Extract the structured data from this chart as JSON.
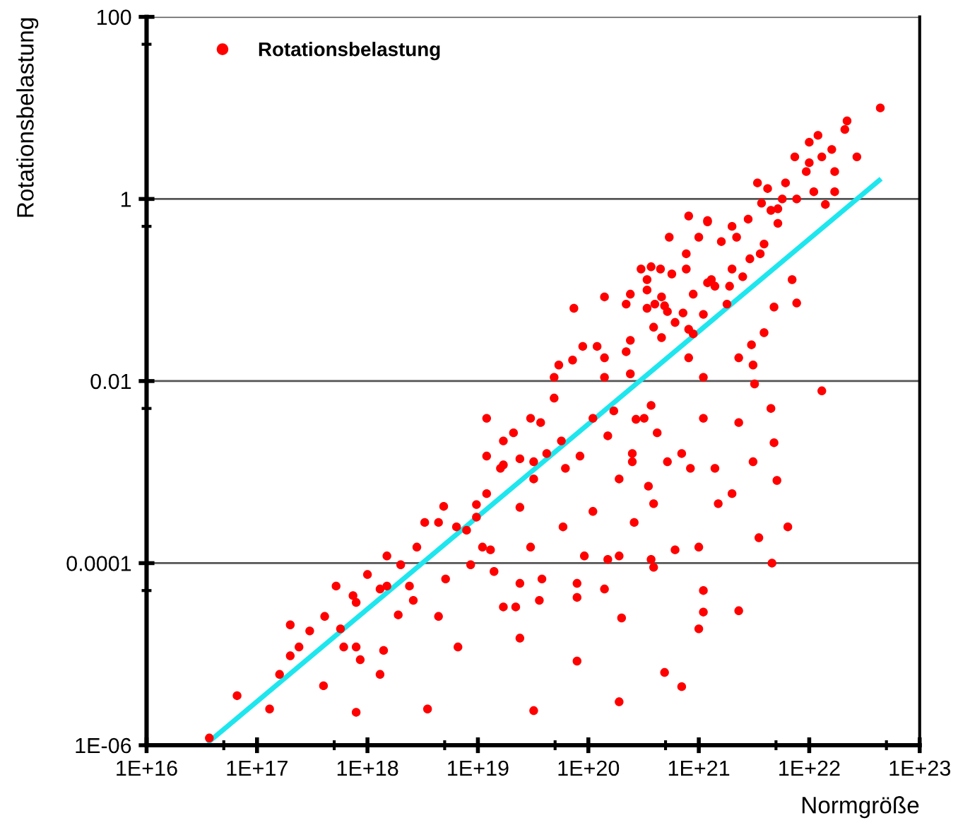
{
  "chart_data": {
    "type": "scatter",
    "xlabel": "Normgröße",
    "ylabel": "Rotationsbelastung",
    "log": "xy",
    "grid": "y",
    "legend": "top left",
    "xlim": [
      1e+16,
      1e+23
    ],
    "ylim": [
      1e-06,
      100
    ],
    "xticks": [
      {
        "value": 1e+16,
        "label": "1E+16"
      },
      {
        "value": 5e+16,
        "label": null
      },
      {
        "value": 1e+17,
        "label": "1E+17"
      },
      {
        "value": 5e+17,
        "label": null
      },
      {
        "value": 1e+18,
        "label": "1E+18"
      },
      {
        "value": 5e+18,
        "label": null
      },
      {
        "value": 1e+19,
        "label": "1E+19"
      },
      {
        "value": 5e+19,
        "label": null
      },
      {
        "value": 1e+20,
        "label": "1E+20"
      },
      {
        "value": 5e+20,
        "label": null
      },
      {
        "value": 1e+21,
        "label": "1E+21"
      },
      {
        "value": 5e+21,
        "label": null
      },
      {
        "value": 1e+22,
        "label": "1E+22"
      },
      {
        "value": 5e+22,
        "label": null
      },
      {
        "value": 1e+23,
        "label": "1E+23"
      }
    ],
    "yticks": [
      {
        "value": 1e-06,
        "label": "1E-06"
      },
      {
        "value": 5e-05,
        "label": null
      },
      0.0001,
      {
        "value": 0.005,
        "label": null
      },
      0.01,
      {
        "value": 0.5,
        "label": null
      },
      1,
      {
        "value": 50,
        "label": null
      },
      100
    ],
    "series": [
      {
        "name": "Rotationsbelastung",
        "marker": "circle",
        "color": "#ff0000",
        "x": [
          3.7e+16,
          6.6e+16,
          1.3e+17,
          1.6e+17,
          2e+17,
          2.4e+17,
          3e+17,
          4.1e+17,
          4e+17,
          5.7e+17,
          5.2e+17,
          7.9e+17,
          7.9e+17,
          1e+18,
          7.9e+17,
          1.3e+18,
          1.4e+18,
          1.3e+18,
          2e+18,
          2.4e+18,
          2.8e+18,
          3.5e+18,
          4.4e+18,
          5.1e+18,
          4.9e+18,
          6.6e+18,
          7.9e+18,
          9.7e+18,
          1.2e+19,
          1.3e+19,
          1.7e+19,
          1.7e+19,
          2.4e+19,
          2.4e+19,
          2.2e+19,
          3.2e+19,
          3.2e+19,
          3.6e+19,
          1.2e+19,
          1.7e+19,
          3e+19,
          4.9e+19,
          5.4e+19,
          6.2e+19,
          5.9e+19,
          7.9e+19,
          7.9e+19,
          7.4e+19,
          8.9e+19,
          1.1e+20,
          1.4e+20,
          1.5e+20,
          1.4e+20,
          1.9e+20,
          2e+20,
          1.5e+20,
          1.9e+20,
          1.4e+20,
          2.4e+20,
          2.5e+20,
          2.6e+20,
          3.4e+20,
          3.2e+20,
          3.7e+20,
          3.9e+20,
          3.9e+20,
          3e+20,
          4.5e+20,
          4.2e+20,
          5.2e+20,
          5.4e+20,
          6.1e+20,
          7e+20,
          4.9e+20,
          7.7e+20,
          8.1e+20,
          7e+20,
          8.1e+20,
          8.4e+20,
          1e+21,
          1.1e+21,
          1e+21,
          1.1e+21,
          1.1e+21,
          1.2e+21,
          1.3e+21,
          1.5e+21,
          1.4e+21,
          1.6e+21,
          2e+21,
          2.3e+21,
          2.3e+21,
          4.4e+22,
          2.2e+22,
          2.1e+22,
          2.7e+22,
          1.2e+22,
          1e+22,
          1.6e+22,
          1.3e+22,
          7.4e+21,
          1e+22,
          9.4e+21,
          1.7e+22,
          1.1e+22,
          1.7e+22,
          1.4e+22,
          6.1e+21,
          3.4e+21,
          4.2e+21,
          5.7e+21,
          3.7e+21,
          4.5e+21,
          2.8e+21,
          5.2e+21,
          2e+21,
          1.2e+21,
          1e+21,
          3.9e+21,
          3.6e+21,
          2.2e+21,
          2.9e+21,
          2e+21,
          7.7e+20,
          5.7e+20,
          3.7e+20,
          1.2e+21,
          1.9e+21,
          2.5e+21,
          3.4e+20,
          4.6e+20,
          2.2e+20,
          4e+20,
          8.9e+20,
          1.4e+21,
          1.8e+21,
          1.1e+21,
          7.2e+20,
          5.2e+20,
          3.9e+20,
          8.1e+20,
          4.6e+20,
          2.4e+20,
          8.9e+20,
          7e+21,
          7.7e+21,
          4.8e+21,
          3.9e+21,
          3e+21,
          2.3e+21,
          3.1e+21,
          3.2e+21,
          1.3e+22,
          4.5e+21,
          4.8e+21,
          5.1e+21,
          3.1e+21,
          6.4e+21,
          3.5e+21,
          4.6e+21,
          1.1e+21,
          1.2e+20,
          1.4e+20,
          4.9e+19,
          3.7e+19,
          2.1e+19,
          2.4e+19,
          5.7e+19,
          8.4e+19,
          4.2e+19,
          1.6e+19,
          1.2e+19,
          9.7e+18,
          3.2e+19,
          2.7e+20,
          2.5e+20,
          3.5e+20,
          1.1e+20,
          1.7e+20,
          9.2e+19,
          1.9e+20,
          3.7e+20,
          2.4e+19,
          3.8e+19,
          7.9e+19,
          8.6e+18,
          7.2e+19,
          2.2e+20,
          2.4e+20,
          3.4e+20,
          4.9e+20,
          6.1e+20,
          5.2e+21,
          7.7e+21,
          2e+17,
          6.1e+17,
          8.6e+17,
          7.4e+17,
          1.5e+18,
          1.9e+18,
          2.6e+18,
          1.5e+18,
          4.4e+18,
          1.1e+19,
          1.4e+19,
          6.4e+18,
          3.3e+18,
          3e+19
        ],
        "values": [
          1.2e-06,
          3.5e-06,
          2.5e-06,
          6e-06,
          9.6e-06,
          1.2e-05,
          1.8e-05,
          2.6e-05,
          4.5e-06,
          1.9e-05,
          5.6e-05,
          3.7e-05,
          1.2e-05,
          7.5e-05,
          2.3e-06,
          5.2e-05,
          1.1e-05,
          6e-06,
          9.6e-05,
          5.6e-05,
          0.00015,
          2.5e-06,
          0.00028,
          6.7e-05,
          0.00042,
          1.2e-05,
          0.00023,
          0.00044,
          0.0015,
          0.00014,
          0.0012,
          0.0022,
          0.00041,
          1.5e-05,
          3.3e-05,
          2.4e-06,
          0.0013,
          3.9e-05,
          0.0039,
          3.3e-05,
          0.0039,
          0.011,
          0.015,
          0.0011,
          0.00025,
          4.2e-05,
          8.4e-06,
          0.063,
          0.024,
          0.00037,
          0.018,
          0.00011,
          5.2e-05,
          3e-06,
          2.5e-05,
          0.0025,
          0.00084,
          0.084,
          0.09,
          0.0016,
          0.00028,
          0.063,
          0.0039,
          0.0054,
          0.00045,
          9e-05,
          0.17,
          0.17,
          0.0027,
          0.0013,
          0.38,
          0.00014,
          4.4e-06,
          6.3e-06,
          0.25,
          0.65,
          0.0016,
          0.018,
          0.0011,
          0.00015,
          5e-05,
          1.9e-05,
          0.0039,
          0.011,
          0.58,
          0.13,
          0.00045,
          0.0011,
          0.34,
          0.00058,
          3e-05,
          0.0035,
          10,
          7.2,
          5.8,
          2.9,
          5.0,
          4.2,
          3.5,
          2.9,
          2.9,
          2.5,
          2.0,
          2.0,
          1.2,
          1.2,
          0.87,
          1.5,
          1.5,
          1.3,
          1.0,
          0.9,
          0.75,
          0.6,
          0.54,
          0.5,
          0.56,
          0.38,
          0.32,
          0.25,
          0.38,
          0.22,
          0.17,
          0.17,
          0.15,
          0.18,
          0.12,
          0.11,
          0.14,
          0.1,
          0.084,
          0.07,
          0.07,
          0.09,
          0.11,
          0.07,
          0.054,
          0.056,
          0.058,
          0.039,
          0.037,
          0.03,
          0.028,
          0.033,
          0.13,
          0.072,
          0.065,
          0.034,
          0.025,
          0.018,
          0.015,
          0.0093,
          0.0078,
          0.005,
          0.0021,
          0.00081,
          0.0013,
          0.00025,
          0.00019,
          0.0001,
          2.9e-05,
          0.024,
          0.011,
          0.0065,
          0.0035,
          0.0027,
          0.0014,
          0.0022,
          0.0015,
          0.0016,
          0.0011,
          0.00058,
          0.00032,
          0.00084,
          0.0038,
          0.0013,
          0.0007,
          0.0039,
          0.0047,
          0.00012,
          0.00012,
          0.00011,
          6e-05,
          6.7e-05,
          6e-05,
          9.6e-05,
          0.017,
          0.021,
          0.012,
          0.13,
          0.067,
          0.044,
          0.78,
          1.0,
          2.1e-05,
          1.2e-05,
          8.7e-06,
          4.4e-05,
          5.6e-05,
          2.7e-05,
          3.9e-05,
          0.00012,
          2.6e-05,
          0.00015,
          8.1e-05,
          0.00025,
          0.00028,
          0.00015
        ]
      },
      {
        "type": "line",
        "marker": "none",
        "color": "#1ee6ee",
        "x": [
          3.7e+16,
          4.3e+22
        ],
        "values": [
          1.1e-06,
          1.6
        ]
      }
    ]
  }
}
